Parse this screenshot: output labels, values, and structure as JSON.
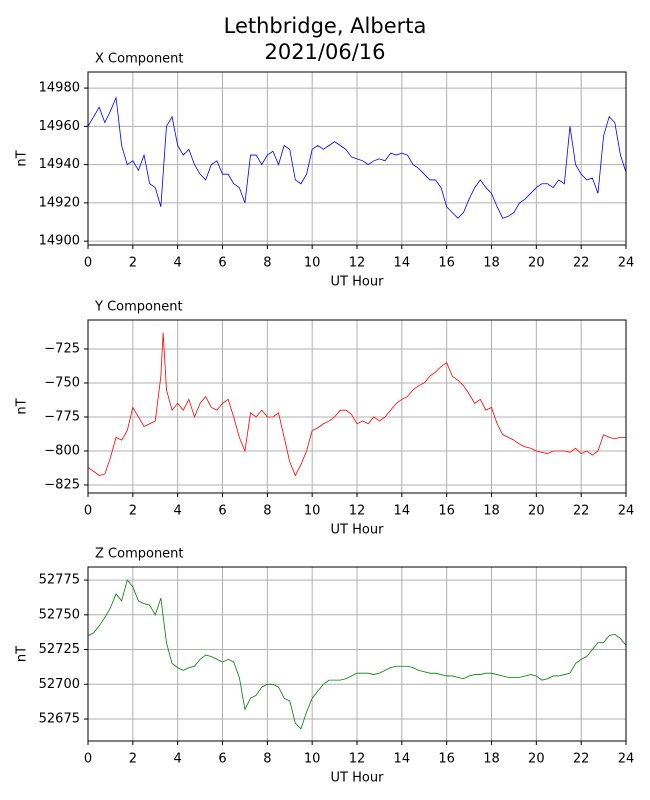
{
  "title": "Lethbridge, Alberta",
  "subtitle": "2021/06/16",
  "chart_data": [
    {
      "type": "line",
      "title": "X Component",
      "x_label": "UT Hour",
      "y_label": "nT",
      "color": "#0000ff",
      "grid": true,
      "xlim": [
        0,
        24
      ],
      "xticks": [
        0,
        2,
        4,
        6,
        8,
        10,
        12,
        14,
        16,
        18,
        20,
        22,
        24
      ],
      "ylim": [
        14898,
        14988.4
      ],
      "yticks": [
        14900,
        14920,
        14940,
        14960,
        14980
      ],
      "x": [
        0,
        0.25,
        0.5,
        0.75,
        1,
        1.25,
        1.5,
        1.75,
        2,
        2.25,
        2.5,
        2.75,
        3,
        3.25,
        3.5,
        3.75,
        4,
        4.25,
        4.5,
        4.75,
        5,
        5.25,
        5.5,
        5.75,
        6,
        6.25,
        6.5,
        6.75,
        7,
        7.25,
        7.5,
        7.75,
        8,
        8.25,
        8.5,
        8.75,
        9,
        9.25,
        9.5,
        9.75,
        10,
        10.25,
        10.5,
        10.75,
        11,
        11.25,
        11.5,
        11.75,
        12,
        12.25,
        12.5,
        12.75,
        13,
        13.25,
        13.5,
        13.75,
        14,
        14.25,
        14.5,
        14.75,
        15,
        15.25,
        15.5,
        15.75,
        16,
        16.25,
        16.5,
        16.75,
        17,
        17.25,
        17.5,
        17.75,
        18,
        18.25,
        18.5,
        18.75,
        19,
        19.25,
        19.5,
        19.75,
        20,
        20.25,
        20.5,
        20.75,
        21,
        21.25,
        21.5,
        21.75,
        22,
        22.25,
        22.5,
        22.75,
        23,
        23.25,
        23.5,
        23.75,
        24
      ],
      "values": [
        14960,
        14965,
        14970,
        14962,
        14968,
        14975,
        14950,
        14940,
        14942,
        14937,
        14945,
        14930,
        14928,
        14918,
        14960,
        14965,
        14950,
        14945,
        14948,
        14940,
        14935,
        14932,
        14940,
        14942,
        14935,
        14935,
        14930,
        14928,
        14920,
        14945,
        14945,
        14940,
        14945,
        14947,
        14940,
        14950,
        14948,
        14932,
        14930,
        14935,
        14948,
        14950,
        14948,
        14950,
        14952,
        14950,
        14948,
        14944,
        14943,
        14942,
        14940,
        14942,
        14943,
        14942,
        14946,
        14945,
        14946,
        14945,
        14940,
        14938,
        14935,
        14932,
        14932,
        14928,
        14918,
        14915,
        14912,
        14915,
        14922,
        14928,
        14932,
        14928,
        14925,
        14918,
        14912,
        14913,
        14915,
        14920,
        14922,
        14925,
        14928,
        14930,
        14930,
        14928,
        14932,
        14930,
        14960,
        14940,
        14935,
        14932,
        14933,
        14925,
        14955,
        14965,
        14962,
        14945,
        14936
      ]
    },
    {
      "type": "line",
      "title": "Y Component",
      "x_label": "UT Hour",
      "y_label": "nT",
      "color": "#ff0000",
      "grid": true,
      "xlim": [
        0,
        24
      ],
      "xticks": [
        0,
        2,
        4,
        6,
        8,
        10,
        12,
        14,
        16,
        18,
        20,
        22,
        24
      ],
      "ylim": [
        -830.9,
        -703.7
      ],
      "yticks": [
        {
          "value": -825,
          "label": "−825"
        },
        {
          "value": -800,
          "label": "−800"
        },
        {
          "value": -775,
          "label": "−775"
        },
        {
          "value": -750,
          "label": "−750"
        },
        {
          "value": -725,
          "label": "−725"
        }
      ],
      "x": [
        0,
        0.25,
        0.5,
        0.75,
        1,
        1.25,
        1.5,
        1.75,
        2,
        2.25,
        2.5,
        2.75,
        3,
        3.25,
        3.35,
        3.5,
        3.75,
        4,
        4.25,
        4.5,
        4.75,
        5,
        5.25,
        5.5,
        5.75,
        6,
        6.25,
        6.5,
        6.75,
        7,
        7.25,
        7.5,
        7.75,
        8,
        8.25,
        8.5,
        8.75,
        9,
        9.25,
        9.5,
        9.75,
        10,
        10.25,
        10.5,
        10.75,
        11,
        11.25,
        11.5,
        11.75,
        12,
        12.25,
        12.5,
        12.75,
        13,
        13.25,
        13.5,
        13.75,
        14,
        14.25,
        14.5,
        14.75,
        15,
        15.25,
        15.5,
        15.75,
        16,
        16.25,
        16.5,
        16.75,
        17,
        17.25,
        17.5,
        17.75,
        18,
        18.25,
        18.5,
        18.75,
        19,
        19.25,
        19.5,
        19.75,
        20,
        20.25,
        20.5,
        20.75,
        21,
        21.25,
        21.5,
        21.75,
        22,
        22.25,
        22.5,
        22.75,
        23,
        23.25,
        23.5,
        23.75,
        24
      ],
      "values": [
        -812,
        -815,
        -818,
        -817,
        -805,
        -790,
        -792,
        -785,
        -768,
        -775,
        -782,
        -780,
        -778,
        -745,
        -713,
        -755,
        -770,
        -765,
        -770,
        -762,
        -775,
        -765,
        -760,
        -768,
        -770,
        -765,
        -762,
        -775,
        -790,
        -800,
        -772,
        -775,
        -770,
        -775,
        -775,
        -772,
        -790,
        -808,
        -818,
        -810,
        -800,
        -785,
        -783,
        -780,
        -778,
        -775,
        -770,
        -770,
        -773,
        -780,
        -778,
        -780,
        -775,
        -778,
        -775,
        -770,
        -765,
        -762,
        -760,
        -755,
        -752,
        -750,
        -745,
        -742,
        -738,
        -735,
        -745,
        -748,
        -752,
        -758,
        -765,
        -762,
        -770,
        -768,
        -780,
        -788,
        -790,
        -792,
        -795,
        -797,
        -798,
        -800,
        -801,
        -802,
        -800,
        -800,
        -800,
        -801,
        -798,
        -802,
        -800,
        -803,
        -800,
        -788,
        -790,
        -791,
        -790,
        -790
      ]
    },
    {
      "type": "line",
      "title": "Z Component",
      "x_label": "UT Hour",
      "y_label": "nT",
      "color": "#008000",
      "grid": true,
      "xlim": [
        0,
        24
      ],
      "xticks": [
        0,
        2,
        4,
        6,
        8,
        10,
        12,
        14,
        16,
        18,
        20,
        22,
        24
      ],
      "ylim": [
        52659.2,
        52784.4
      ],
      "yticks": [
        52675,
        52700,
        52725,
        52750,
        52775
      ],
      "x": [
        0,
        0.25,
        0.5,
        0.75,
        1,
        1.25,
        1.5,
        1.75,
        2,
        2.25,
        2.5,
        2.75,
        3,
        3.25,
        3.5,
        3.75,
        4,
        4.25,
        4.5,
        4.75,
        5,
        5.25,
        5.5,
        5.75,
        6,
        6.25,
        6.5,
        6.75,
        7,
        7.25,
        7.5,
        7.75,
        8,
        8.25,
        8.5,
        8.75,
        9,
        9.25,
        9.5,
        9.75,
        10,
        10.25,
        10.5,
        10.75,
        11,
        11.25,
        11.5,
        11.75,
        12,
        12.25,
        12.5,
        12.75,
        13,
        13.25,
        13.5,
        13.75,
        14,
        14.25,
        14.5,
        14.75,
        15,
        15.25,
        15.5,
        15.75,
        16,
        16.25,
        16.5,
        16.75,
        17,
        17.25,
        17.5,
        17.75,
        18,
        18.25,
        18.5,
        18.75,
        19,
        19.25,
        19.5,
        19.75,
        20,
        20.25,
        20.5,
        20.75,
        21,
        21.25,
        21.5,
        21.75,
        22,
        22.25,
        22.5,
        22.75,
        23,
        23.25,
        23.5,
        23.75,
        24
      ],
      "values": [
        52735,
        52737,
        52742,
        52748,
        52755,
        52765,
        52760,
        52775,
        52770,
        52760,
        52758,
        52757,
        52750,
        52762,
        52730,
        52715,
        52712,
        52710,
        52712,
        52713,
        52718,
        52721,
        52720,
        52718,
        52716,
        52718,
        52716,
        52705,
        52682,
        52690,
        52692,
        52698,
        52700,
        52700,
        52698,
        52690,
        52688,
        52672,
        52668,
        52680,
        52690,
        52695,
        52700,
        52703,
        52703,
        52703,
        52704,
        52706,
        52708,
        52708,
        52708,
        52707,
        52708,
        52710,
        52712,
        52713,
        52713,
        52713,
        52712,
        52710,
        52709,
        52708,
        52708,
        52707,
        52706,
        52706,
        52705,
        52704,
        52706,
        52707,
        52707,
        52708,
        52708,
        52707,
        52706,
        52705,
        52705,
        52705,
        52706,
        52707,
        52706,
        52703,
        52704,
        52706,
        52706,
        52707,
        52708,
        52715,
        52718,
        52720,
        52725,
        52730,
        52730,
        52735,
        52736,
        52733,
        52728
      ]
    }
  ]
}
